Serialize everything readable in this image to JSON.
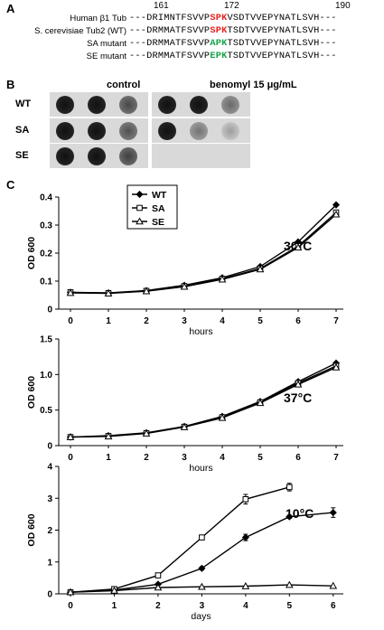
{
  "panels": {
    "A": "A",
    "B": "B",
    "C": "C"
  },
  "panel_a": {
    "positions": [
      "161",
      "172",
      "190"
    ],
    "rows": [
      {
        "label": "Human β1 Tub",
        "pre": "---DRIMNTFSVVP",
        "hl": "SPK",
        "hl_color": "red",
        "post": "VSDTVVEPYNATLSVH---"
      },
      {
        "label": "S. cerevisiae Tub2 (WT)",
        "pre": "---DRMMATFSVVP",
        "hl": "SPK",
        "hl_color": "red",
        "post": "TSDTVVEPYNATLSVH---"
      },
      {
        "label": "SA mutant",
        "pre": "---DRMMATFSVVP",
        "hl": "APK",
        "hl_color": "green",
        "post": "TSDTVVEPYNATLSVH---"
      },
      {
        "label": "SE mutant",
        "pre": "---DRMMATFSVVP",
        "hl": "EPK",
        "hl_color": "green",
        "post": "TSDTVVEPYNATLSVH---"
      }
    ]
  },
  "panel_b": {
    "control_title": "control",
    "benomyl_title": "benomyl 15 μg/mL",
    "strains": [
      "WT",
      "SA",
      "SE"
    ],
    "growth_levels": {
      "control": [
        [
          1,
          1,
          0.7
        ],
        [
          1,
          1,
          0.65
        ],
        [
          1,
          1,
          0.75
        ]
      ],
      "benomyl": [
        [
          1,
          0.85,
          0.5
        ],
        [
          0.8,
          0.45,
          0.2
        ],
        [
          0,
          0,
          0
        ]
      ]
    }
  },
  "chart_data": [
    {
      "type": "line",
      "x": [
        0,
        1,
        2,
        3,
        4,
        5,
        6,
        7
      ],
      "xlabel": "hours",
      "ylabel": "OD 600",
      "ylim": [
        0,
        0.4
      ],
      "yticks": [
        "0",
        "0.1",
        "0.2",
        "0.3",
        "0.4"
      ],
      "annotation": "30°C",
      "legend": {
        "placement": "top-left",
        "entries": [
          "WT",
          "SA",
          "SE"
        ]
      },
      "series": [
        {
          "name": "WT",
          "values": [
            0.06,
            0.058,
            0.066,
            0.085,
            0.112,
            0.152,
            0.24,
            0.372
          ]
        },
        {
          "name": "SA",
          "values": [
            0.06,
            0.057,
            0.065,
            0.082,
            0.108,
            0.145,
            0.225,
            0.345
          ]
        },
        {
          "name": "SE",
          "values": [
            0.058,
            0.056,
            0.064,
            0.08,
            0.106,
            0.142,
            0.22,
            0.338
          ]
        }
      ]
    },
    {
      "type": "line",
      "x": [
        0,
        1,
        2,
        3,
        4,
        5,
        6,
        7
      ],
      "xlabel": "hours",
      "ylabel": "OD 600",
      "ylim": [
        0,
        1.5
      ],
      "yticks": [
        "0",
        "0.5",
        "1.0",
        "1.5"
      ],
      "annotation": "37°C",
      "series": [
        {
          "name": "WT",
          "values": [
            0.12,
            0.14,
            0.18,
            0.27,
            0.41,
            0.62,
            0.9,
            1.16
          ]
        },
        {
          "name": "SA",
          "values": [
            0.12,
            0.135,
            0.175,
            0.265,
            0.4,
            0.61,
            0.88,
            1.12
          ]
        },
        {
          "name": "SE",
          "values": [
            0.12,
            0.13,
            0.17,
            0.26,
            0.39,
            0.6,
            0.86,
            1.1
          ]
        }
      ]
    },
    {
      "type": "line",
      "x": [
        0,
        1,
        2,
        3,
        4,
        5,
        6
      ],
      "xlabel": "days",
      "ylabel": "OD 600",
      "ylim": [
        0,
        4
      ],
      "yticks": [
        "0",
        "1",
        "2",
        "3",
        "4"
      ],
      "annotation": "10°C",
      "series": [
        {
          "name": "WT",
          "values": [
            0.05,
            0.12,
            0.3,
            0.8,
            1.77,
            2.42,
            2.55
          ],
          "err": [
            0,
            0,
            0,
            0.05,
            0.1,
            0.05,
            0.15
          ]
        },
        {
          "name": "SA",
          "values": [
            0.05,
            0.15,
            0.58,
            1.77,
            2.97,
            3.35,
            null
          ],
          "err": [
            0,
            0,
            0.05,
            0.05,
            0.15,
            0.12,
            0
          ]
        },
        {
          "name": "SE",
          "values": [
            0.05,
            0.1,
            0.2,
            0.22,
            0.24,
            0.28,
            0.25
          ],
          "err": [
            0,
            0,
            0,
            0,
            0,
            0,
            0
          ]
        }
      ]
    }
  ]
}
